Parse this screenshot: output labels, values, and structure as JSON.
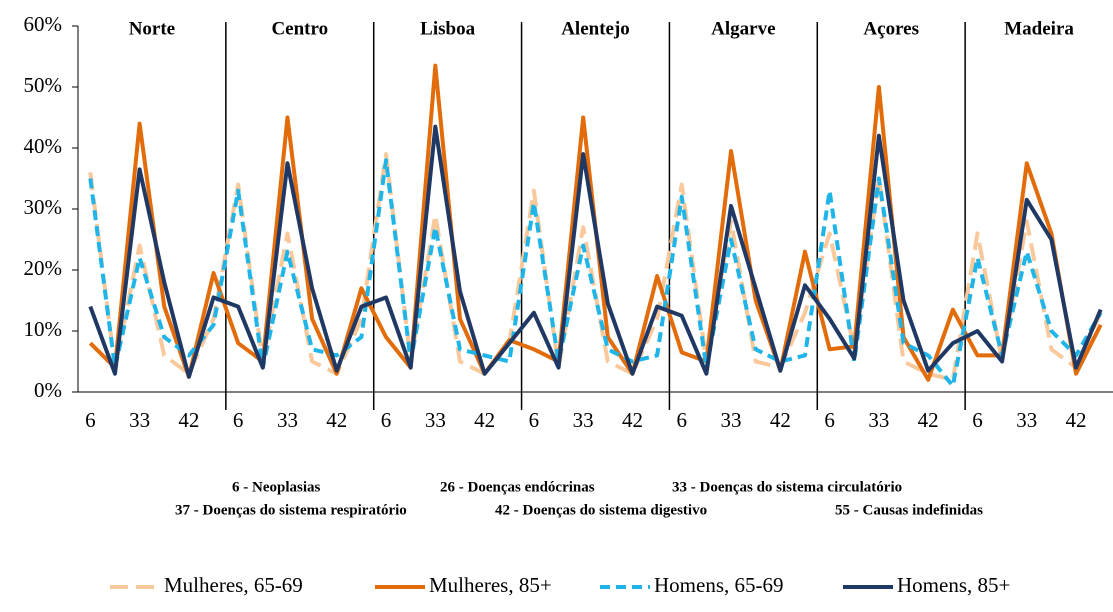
{
  "chart_data": {
    "type": "line",
    "regions": [
      "Norte",
      "Centro",
      "Lisboa",
      "Alentejo",
      "Algarve",
      "Açores",
      "Madeira"
    ],
    "categories": [
      "6",
      null,
      "33",
      null,
      "42",
      null,
      "6",
      null,
      "33",
      null,
      "42",
      null,
      "6",
      null,
      "33",
      null,
      "42",
      null,
      "6",
      null,
      "33",
      null,
      "42",
      null,
      "6",
      null,
      "33",
      null,
      "42",
      null,
      "6",
      null,
      "33",
      null,
      "42",
      null,
      "6",
      null,
      "33",
      null,
      "42",
      null
    ],
    "notes": [
      "6 - Neoplasias",
      "26 - Doenças endócrinas",
      "33 - Doenças do sistema circulatório",
      "37 - Doenças do sistema respiratório",
      "42 - Doenças do sistema digestivo",
      "55 - Causas indefinidas"
    ],
    "ylim": [
      0,
      60
    ],
    "yticks": [
      {
        "value": 0,
        "label": "0%"
      },
      {
        "value": 10,
        "label": "10%"
      },
      {
        "value": 20,
        "label": "20%"
      },
      {
        "value": 30,
        "label": "30%"
      },
      {
        "value": 40,
        "label": "40%"
      },
      {
        "value": 50,
        "label": "50%"
      },
      {
        "value": 60,
        "label": "60%"
      }
    ],
    "legend": "bottom",
    "series": [
      {
        "name": "Mulheres, 65-69",
        "color": "#f9c89b",
        "dash": "long",
        "values": [
          36,
          4,
          24,
          6,
          3,
          12,
          34,
          5,
          26,
          5,
          3,
          12,
          39,
          5,
          29,
          5,
          3,
          8,
          33,
          4,
          27,
          5,
          3,
          12,
          34,
          5,
          28,
          5,
          4,
          13,
          26,
          7,
          35,
          5,
          3,
          2,
          26,
          5,
          28,
          7,
          4,
          13
        ]
      },
      {
        "name": "Mulheres, 85+",
        "color": "#e36c0a",
        "dash": "none",
        "values": [
          8,
          4,
          44,
          14,
          2.5,
          19.5,
          8,
          5,
          45,
          12,
          3,
          17,
          9,
          4,
          53.5,
          12,
          3,
          8.5,
          7,
          5,
          45,
          9,
          3,
          19,
          6.5,
          5,
          39.5,
          15,
          3.5,
          23,
          7,
          7.5,
          50,
          9,
          2,
          13.5,
          6,
          6,
          37.5,
          26,
          3,
          11
        ]
      },
      {
        "name": "Homens, 65-69",
        "color": "#1fb5e8",
        "dash": "short",
        "values": [
          35,
          4,
          22,
          9,
          6,
          11,
          33,
          4,
          23,
          7,
          6,
          9,
          38,
          5,
          27,
          7,
          6,
          5,
          31,
          5,
          24,
          7,
          5,
          6,
          32,
          4,
          25,
          7,
          5,
          6,
          33,
          5,
          35,
          8,
          6,
          1,
          22,
          6,
          23,
          10,
          6,
          13
        ]
      },
      {
        "name": "Homens, 85+",
        "color": "#1f3864",
        "dash": "none",
        "values": [
          14,
          3,
          36.5,
          18,
          2.5,
          15.5,
          14,
          4,
          37.5,
          17,
          3.5,
          14,
          15.5,
          4,
          43.5,
          16.5,
          3,
          8,
          13,
          4,
          39,
          14.5,
          3,
          14,
          12.5,
          3,
          30.5,
          17,
          3.5,
          17.5,
          12,
          5.5,
          42,
          15,
          3.5,
          8,
          10,
          5,
          31.5,
          25,
          4,
          13.5
        ]
      }
    ]
  }
}
